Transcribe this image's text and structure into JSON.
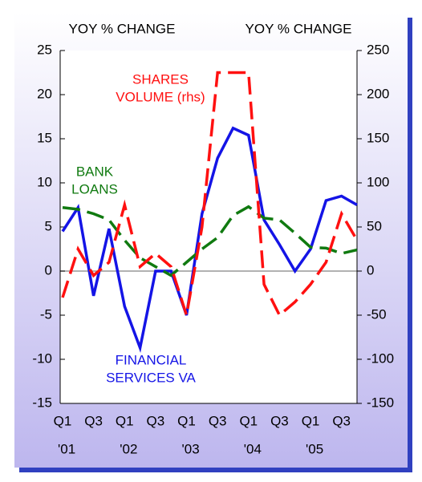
{
  "chart_data": {
    "type": "line",
    "y_title": "YOY % CHANGE",
    "y2_title": "YOY % CHANGE",
    "categories": [
      "Q1",
      null,
      "Q3",
      null,
      "Q1",
      null,
      "Q3",
      null,
      "Q1",
      null,
      "Q3",
      null,
      "Q1",
      null,
      "Q3",
      null,
      "Q1",
      null,
      "Q3",
      null
    ],
    "year_labels": [
      "'01",
      "'02",
      "'03",
      "'04",
      "'05"
    ],
    "ylim": [
      -15,
      25
    ],
    "yticks": [
      -15,
      -10,
      -5,
      0,
      5,
      10,
      15,
      20,
      25
    ],
    "y2lim": [
      -150,
      250
    ],
    "y2ticks": [
      -150,
      -100,
      -50,
      0,
      50,
      100,
      150,
      200,
      250
    ],
    "series": [
      {
        "name": "FINANCIAL SERVICES VA",
        "color": "#1414e6",
        "dash": false,
        "axis": "y",
        "values": [
          4.5,
          7.2,
          -2.8,
          4.8,
          -4,
          -8.7,
          0,
          0,
          -5,
          6.5,
          12.8,
          16.2,
          15.4,
          5.8,
          3,
          0,
          2.5,
          8,
          8.5,
          7.5
        ]
      },
      {
        "name": "BANK LOANS",
        "color": "#107a10",
        "dash": true,
        "axis": "y",
        "values": [
          7.2,
          7,
          6.5,
          5.8,
          3.5,
          1.5,
          0.5,
          -0.5,
          1,
          2.5,
          3.8,
          6.3,
          7.3,
          6,
          5.8,
          4.3,
          2.7,
          2.6,
          2,
          2.4
        ]
      },
      {
        "name": "SHARES VOLUME (rhs)",
        "color": "#ff1010",
        "dash": true,
        "axis": "y2",
        "values": [
          -30,
          25,
          -5,
          10,
          75,
          5,
          20,
          5,
          -50,
          50,
          225,
          225,
          225,
          -15,
          -50,
          -35,
          -15,
          10,
          65,
          35
        ]
      }
    ],
    "annotations": [
      {
        "lines": [
          "SHARES",
          "VOLUME (rhs)"
        ],
        "color": "#ff1010"
      },
      {
        "lines": [
          "BANK",
          "LOANS"
        ],
        "color": "#107a10"
      },
      {
        "lines": [
          "FINANCIAL",
          "SERVICES VA"
        ],
        "color": "#1414e6"
      }
    ]
  }
}
